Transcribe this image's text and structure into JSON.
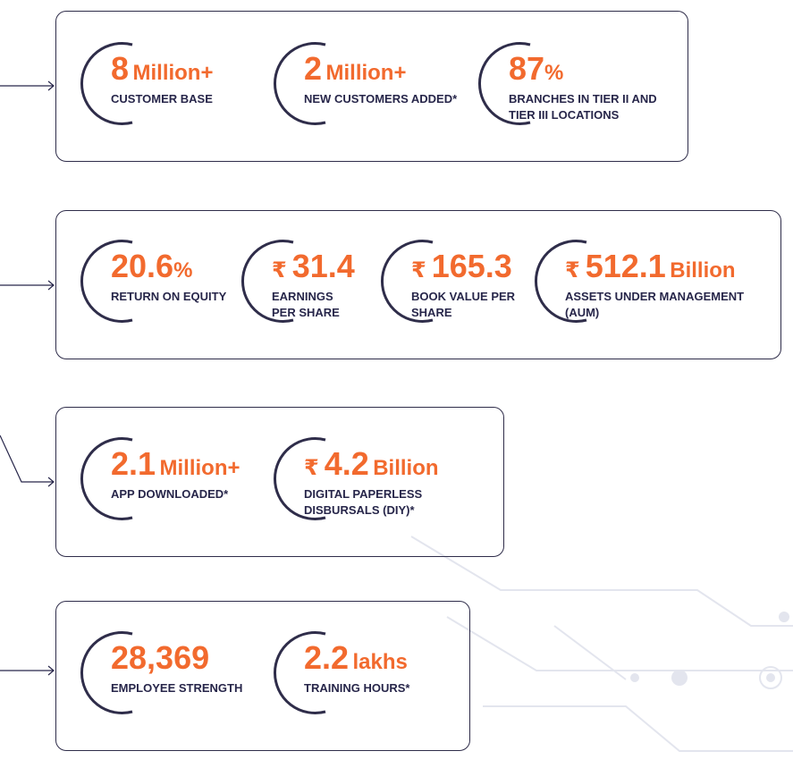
{
  "theme": {
    "accent": "#f26a2e",
    "ink": "#27264a",
    "border": "#2f2d4a",
    "decor": "#e3e5ee"
  },
  "sections": [
    {
      "id": "customers",
      "stats": [
        {
          "value": "8",
          "unit": "Million+",
          "label_lines": [
            "CUSTOMER BASE"
          ]
        },
        {
          "value": "2",
          "unit": "Million+",
          "label_lines": [
            "NEW CUSTOMERS ADDED*"
          ]
        },
        {
          "value": "87",
          "unit": "%",
          "label_lines": [
            "BRANCHES IN TIER II AND",
            "TIER III LOCATIONS"
          ]
        }
      ]
    },
    {
      "id": "financials",
      "stats": [
        {
          "value": "20.6",
          "unit": "%",
          "label_lines": [
            "RETURN ON EQUITY"
          ]
        },
        {
          "currency": "₹",
          "value": "31.4",
          "label_lines": [
            "EARNINGS",
            "PER SHARE"
          ]
        },
        {
          "currency": "₹",
          "value": "165.3",
          "label_lines": [
            "BOOK VALUE PER",
            "SHARE"
          ]
        },
        {
          "currency": "₹",
          "value": "512.1",
          "unit": "Billion",
          "label_lines": [
            "ASSETS UNDER MANAGEMENT",
            "(AUM)"
          ]
        }
      ]
    },
    {
      "id": "digital",
      "stats": [
        {
          "value": "2.1",
          "unit": "Million+",
          "label_lines": [
            "APP DOWNLOADED*"
          ]
        },
        {
          "currency": "₹",
          "value": "4.2",
          "unit": "Billion",
          "label_lines": [
            "DIGITAL PAPERLESS",
            "DISBURSALS (DIY)*"
          ]
        }
      ]
    },
    {
      "id": "people",
      "stats": [
        {
          "value": "28,369",
          "label_lines": [
            "EMPLOYEE STRENGTH"
          ]
        },
        {
          "value": "2.2",
          "unit": "lakhs",
          "label_lines": [
            "TRAINING HOURS*"
          ]
        }
      ]
    }
  ]
}
